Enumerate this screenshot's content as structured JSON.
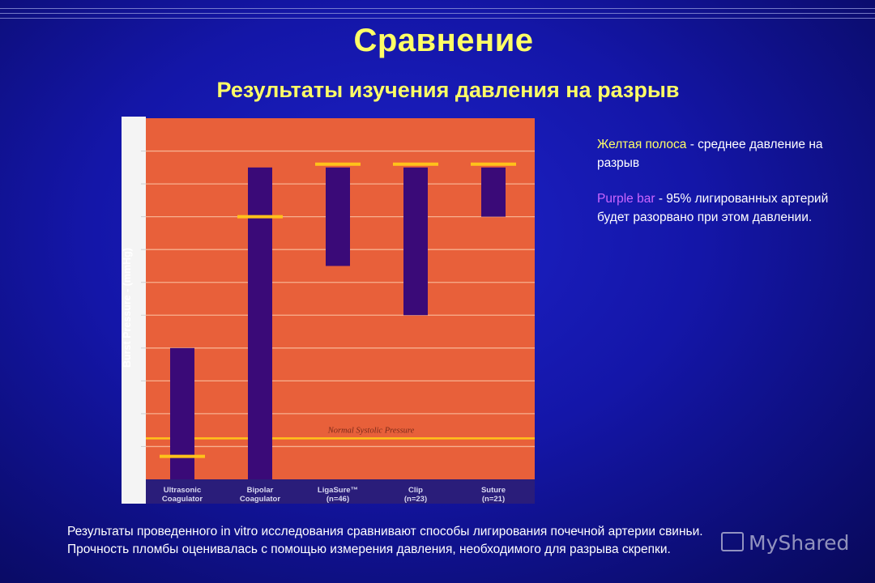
{
  "title": "Сравнение",
  "subtitle": "Результаты  изучения давления на разрыв",
  "chart_data": {
    "type": "bar",
    "ylabel": "Burst Pressure - (mmHg)",
    "categories": [
      [
        "Ultrasonic",
        "Coagulator"
      ],
      [
        "Bipolar",
        "Coagulator"
      ],
      [
        "LigaSure™",
        "(n=46)"
      ],
      [
        "Clip",
        "(n=23)"
      ],
      [
        "Suture",
        "(n=21)"
      ]
    ],
    "ylim": [
      0,
      11
    ],
    "grid": true,
    "bars": [
      {
        "low": 0.0,
        "high": 4.0,
        "mean": 0.7
      },
      {
        "low": 0.0,
        "high": 9.5,
        "mean": 8.0
      },
      {
        "low": 6.5,
        "high": 9.5,
        "mean": 9.6
      },
      {
        "low": 5.0,
        "high": 9.5,
        "mean": 9.6
      },
      {
        "low": 8.0,
        "high": 9.5,
        "mean": 9.6
      }
    ],
    "reference_line": {
      "label": "Normal Systolic Pressure",
      "value": 1.25
    },
    "colors": {
      "background": "#e8603a",
      "bar": "#3a0a78",
      "mean": "#ffc21a",
      "axis_band": "#2a1d7a",
      "grid": "#f7b08f"
    }
  },
  "legend": {
    "item1_key": "Желтая полоса",
    "item1_text": " - среднее давление на разрыв",
    "item2_key": "Purple bar",
    "item2_text": " - 95% лигированных артерий будет разорвано при этом давлении."
  },
  "footnote": {
    "line1": "Результаты проведенного in vitro исследования сравнивают способы лигирования почечной артерии свиньи.",
    "line2": "Прочность пломбы оценивалась с помощью измерения давления, необходимого для разрыва скрепки."
  },
  "watermark": "MyShared"
}
